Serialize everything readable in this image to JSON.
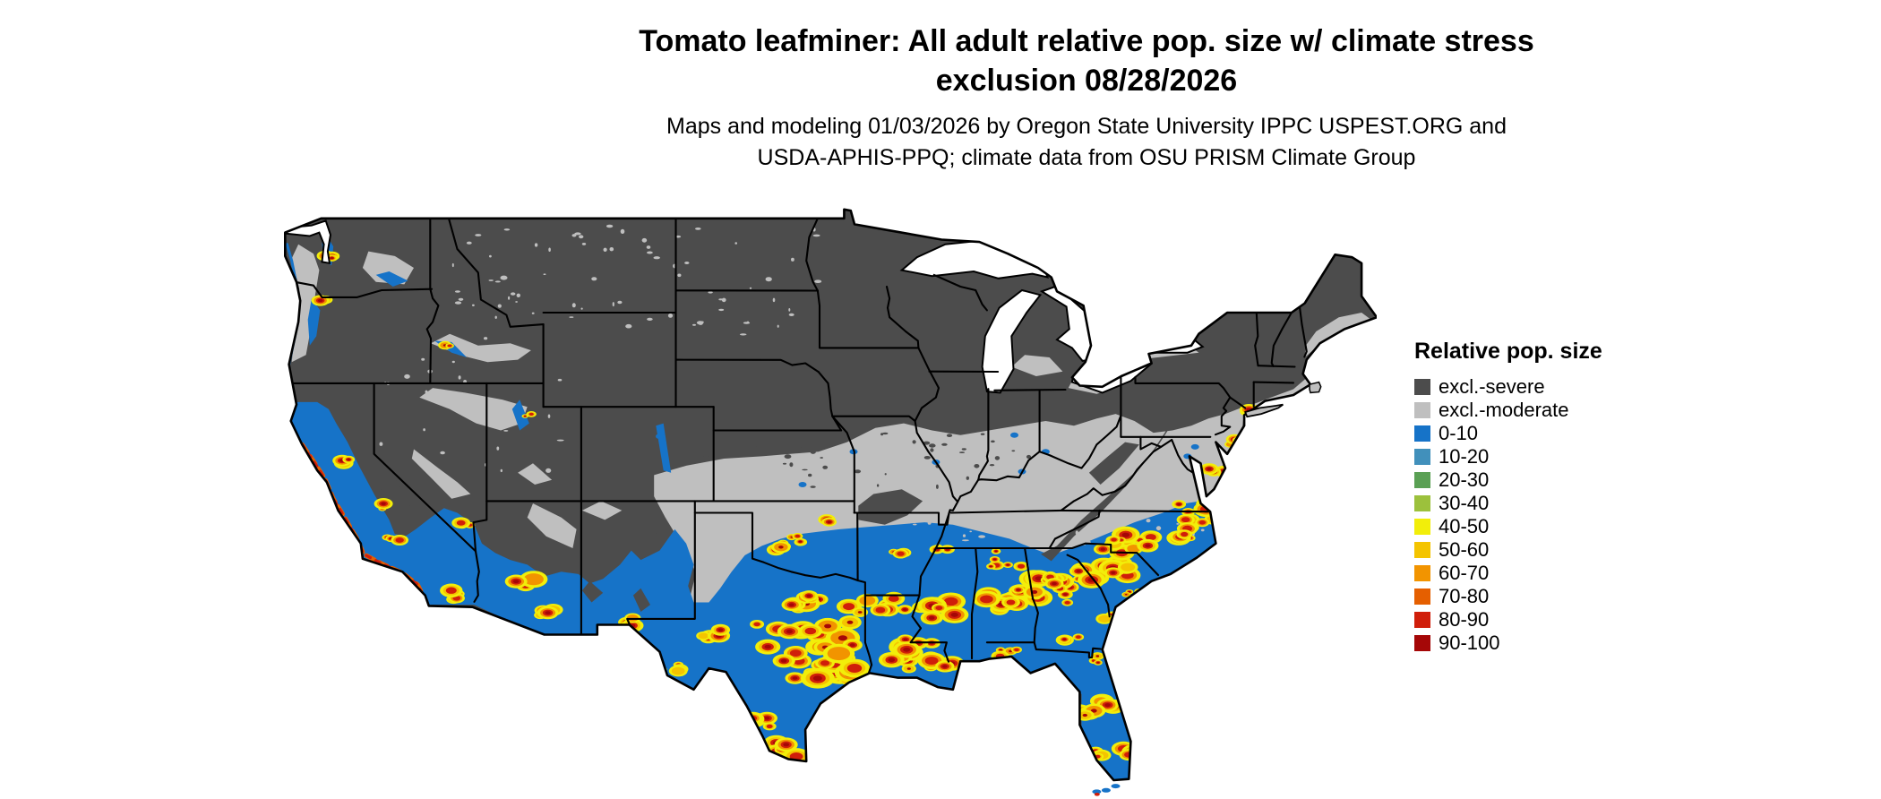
{
  "header": {
    "title_line1": "Tomato leafminer: All adult relative pop. size w/ climate stress",
    "title_line2": "exclusion 08/28/2026",
    "subtitle_line1": "Maps and modeling 01/03/2026 by Oregon State University IPPC USPEST.ORG and",
    "subtitle_line2": "USDA-APHIS-PPQ; climate data from OSU PRISM Climate Group"
  },
  "legend": {
    "title": "Relative pop. size",
    "items": [
      {
        "label": "excl.-severe",
        "color": "#4c4c4c"
      },
      {
        "label": "excl.-moderate",
        "color": "#bfbfbf"
      },
      {
        "label": "0-10",
        "color": "#1673c8"
      },
      {
        "label": "10-20",
        "color": "#4190bb"
      },
      {
        "label": "20-30",
        "color": "#5aa054"
      },
      {
        "label": "30-40",
        "color": "#9cc13c"
      },
      {
        "label": "40-50",
        "color": "#f2ee0a"
      },
      {
        "label": "50-60",
        "color": "#f4c400"
      },
      {
        "label": "60-70",
        "color": "#f29400"
      },
      {
        "label": "70-80",
        "color": "#e55f00"
      },
      {
        "label": "80-90",
        "color": "#d01e0a"
      },
      {
        "label": "90-100",
        "color": "#a50707"
      }
    ]
  },
  "map": {
    "colors": {
      "excluded_severe": "#4c4c4c",
      "excluded_moderate": "#bfbfbf",
      "population_low": "#1673c8",
      "water": "#ffffff",
      "border": "#000000"
    }
  }
}
